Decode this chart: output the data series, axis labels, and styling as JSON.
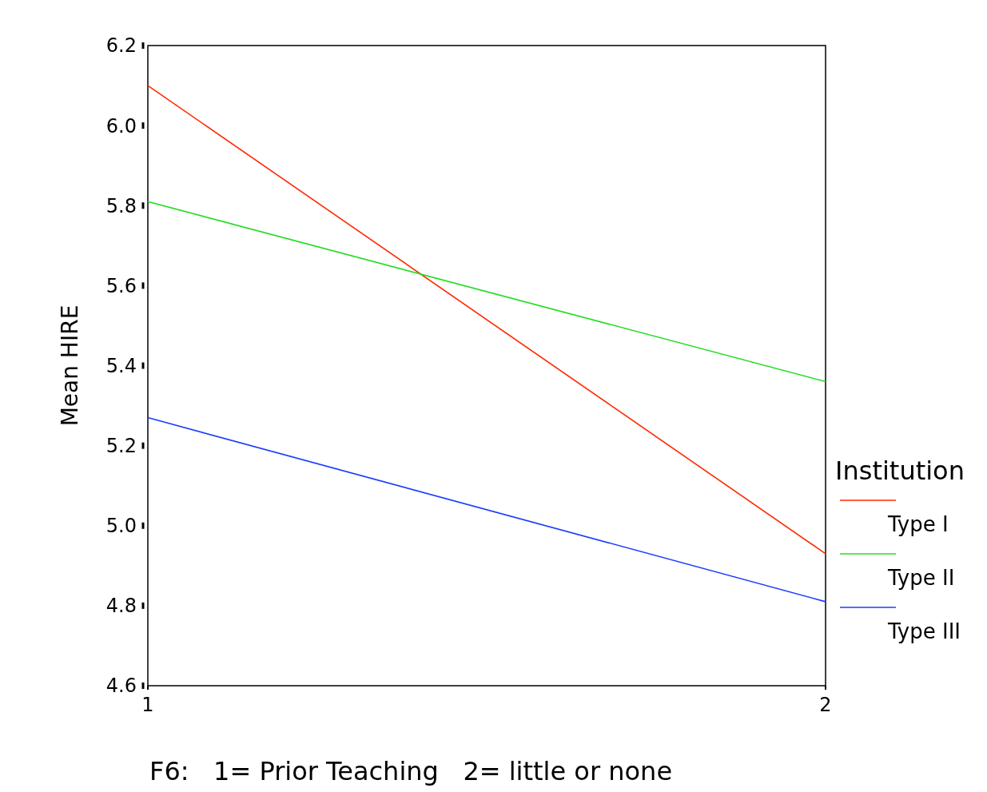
{
  "chart_data": {
    "type": "line",
    "xlabel": "F6:   1= Prior Teaching   2= little or none",
    "ylabel": "Mean HIRE",
    "legend_title": "Institution",
    "x": [
      1,
      2
    ],
    "xlim": [
      1,
      2
    ],
    "xticks": [
      1,
      2
    ],
    "ylim": [
      4.6,
      6.2
    ],
    "yticks": [
      {
        "value": 4.6,
        "label": "4.6"
      },
      {
        "value": 4.8,
        "label": "4.8"
      },
      {
        "value": 5.0,
        "label": "5.0"
      },
      {
        "value": 5.2,
        "label": "5.2"
      },
      {
        "value": 5.4,
        "label": "5.4"
      },
      {
        "value": 5.6,
        "label": "5.6"
      },
      {
        "value": 5.8,
        "label": "5.8"
      },
      {
        "value": 6.0,
        "label": "6.0"
      },
      {
        "value": 6.2,
        "label": "6.2"
      }
    ],
    "grid": false,
    "legend": "right",
    "marker": "none",
    "line_style": "solid",
    "series": [
      {
        "name": "Type I",
        "color": "#ff2a00",
        "values": [
          6.1,
          4.93
        ]
      },
      {
        "name": "Type II",
        "color": "#22dd22",
        "values": [
          5.81,
          5.36
        ]
      },
      {
        "name": "Type III",
        "color": "#1a3cff",
        "values": [
          5.27,
          4.81
        ]
      }
    ]
  }
}
